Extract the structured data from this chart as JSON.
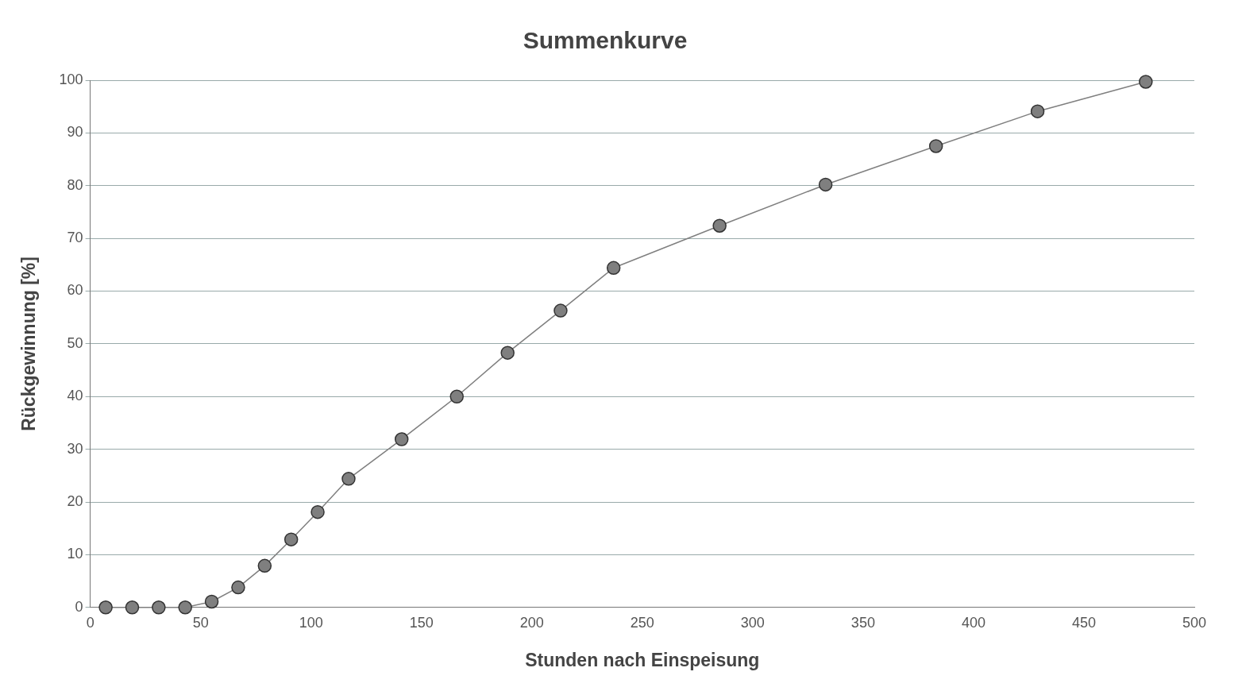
{
  "chart_data": {
    "type": "line",
    "title": "Summenkurve",
    "xlabel": "Stunden nach Einspeisung",
    "ylabel": "Rückgewinnung [%]",
    "x": [
      7,
      19,
      31,
      43,
      55,
      67,
      79,
      91,
      103,
      117,
      141,
      166,
      189,
      213,
      237,
      285,
      333,
      383,
      429,
      478
    ],
    "series": [
      {
        "color": "#7f7f7f",
        "values": [
          0,
          0,
          0,
          0,
          1.1,
          3.8,
          7.9,
          12.9,
          18.1,
          24.4,
          31.9,
          40,
          48.3,
          56.3,
          64.4,
          72.4,
          80.2,
          87.5,
          94.1,
          99.7
        ]
      }
    ],
    "xlim": [
      0,
      500
    ],
    "xticks": [
      0,
      50,
      100,
      150,
      200,
      250,
      300,
      350,
      400,
      450,
      500
    ],
    "ylim": [
      0,
      100
    ],
    "yticks": [
      0,
      10,
      20,
      30,
      40,
      50,
      60,
      70,
      80,
      90,
      100
    ],
    "grid": "y",
    "legend": false,
    "marker": "circle",
    "line_style": "solid"
  }
}
